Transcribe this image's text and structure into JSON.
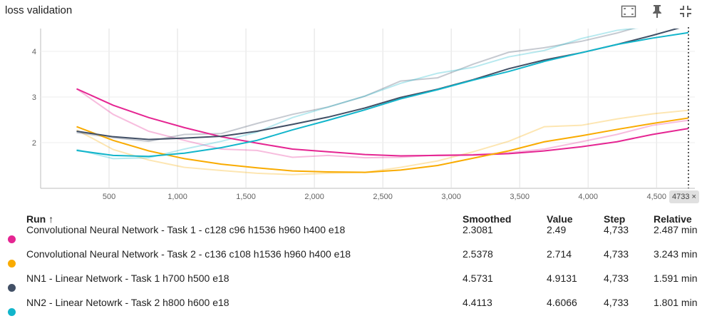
{
  "title": "loss validation",
  "icons": [
    "fit-domain-icon",
    "pin-icon",
    "collapse-icon"
  ],
  "step_badge": "4733 ×",
  "table": {
    "headers": {
      "run": "Run ↑",
      "smoothed": "Smoothed",
      "value": "Value",
      "step": "Step",
      "relative": "Relative"
    },
    "rows": [
      {
        "name": "Convolutional Neural Network - Task 1 - c128 c96 h1536 h960 h400 e18",
        "smoothed": "2.3081",
        "value": "2.49",
        "step": "4,733",
        "relative": "2.487 min",
        "color": "#e52592"
      },
      {
        "name": "Convolutional Neural Network - Task 2 - c136 c108 h1536 h960 h400 e18",
        "smoothed": "2.5378",
        "value": "2.714",
        "step": "4,733",
        "relative": "3.243 min",
        "color": "#f9ab00"
      },
      {
        "name": "NN1 - Linear Network - Task 1 h700 h500 e18",
        "smoothed": "4.5731",
        "value": "4.9131",
        "step": "4,733",
        "relative": "1.591 min",
        "color": "#425066"
      },
      {
        "name": "NN2 - Linear Netowrk - Task 2 h800 h600 e18",
        "smoothed": "4.4113",
        "value": "4.6066",
        "step": "4,733",
        "relative": "1.801 min",
        "color": "#12b5cb"
      }
    ]
  },
  "chart_data": {
    "type": "line",
    "title": "loss validation",
    "xlim": [
      0,
      4780
    ],
    "ylim": [
      1.0,
      4.5
    ],
    "x_ticks": [
      500,
      1000,
      1500,
      2000,
      2500,
      3000,
      3500,
      4000,
      4500
    ],
    "x_tick_labels": [
      "500",
      "1,000",
      "1,500",
      "2,000",
      "2,500",
      "3,000",
      "3,500",
      "4,000",
      "4,500"
    ],
    "y_ticks": [
      2,
      3,
      4
    ],
    "y_tick_labels": [
      "2",
      "3",
      "4"
    ],
    "grid": true,
    "cursor_step": 4733,
    "series": [
      {
        "name": "Convolutional Neural Network - Task 1 - c128 c96 h1536 h960 h400 e18",
        "color": "#e52592",
        "x": [
          263,
          530,
          790,
          1050,
          1320,
          1580,
          1840,
          2100,
          2370,
          2630,
          2900,
          3160,
          3420,
          3680,
          3950,
          4210,
          4470,
          4733
        ],
        "raw": [
          3.18,
          2.62,
          2.25,
          2.05,
          1.86,
          1.83,
          1.68,
          1.72,
          1.67,
          1.68,
          1.73,
          1.74,
          1.78,
          1.86,
          2.02,
          2.18,
          2.38,
          2.49
        ],
        "smoothed": [
          3.18,
          2.82,
          2.55,
          2.33,
          2.13,
          1.99,
          1.86,
          1.8,
          1.74,
          1.71,
          1.72,
          1.73,
          1.76,
          1.82,
          1.91,
          2.02,
          2.18,
          2.31
        ]
      },
      {
        "name": "Convolutional Neural Network - Task 2 - c136 c108 h1536 h960 h400 e18",
        "color": "#f9ab00",
        "x": [
          263,
          530,
          790,
          1050,
          1320,
          1580,
          1840,
          2100,
          2370,
          2630,
          2900,
          3160,
          3420,
          3680,
          3950,
          4210,
          4470,
          4733
        ],
        "raw": [
          2.28,
          1.85,
          1.62,
          1.46,
          1.39,
          1.33,
          1.3,
          1.33,
          1.35,
          1.46,
          1.6,
          1.8,
          2.03,
          2.35,
          2.38,
          2.52,
          2.63,
          2.71
        ],
        "smoothed": [
          2.35,
          2.05,
          1.82,
          1.65,
          1.53,
          1.45,
          1.38,
          1.36,
          1.35,
          1.4,
          1.5,
          1.66,
          1.82,
          2.02,
          2.15,
          2.29,
          2.42,
          2.54
        ]
      },
      {
        "name": "NN1 - Linear Network - Task 1 h700 h500 e18",
        "color": "#425066",
        "x": [
          263,
          530,
          790,
          1050,
          1320,
          1580,
          1840,
          2100,
          2370,
          2630,
          2900,
          3160,
          3420,
          3680,
          3950,
          4210,
          4470,
          4733
        ],
        "raw": [
          2.22,
          2.11,
          2.03,
          2.18,
          2.2,
          2.42,
          2.62,
          2.78,
          3.02,
          3.35,
          3.42,
          3.72,
          3.98,
          4.08,
          4.22,
          4.4,
          4.62,
          4.91
        ],
        "smoothed": [
          2.25,
          2.13,
          2.07,
          2.1,
          2.14,
          2.25,
          2.4,
          2.56,
          2.76,
          2.99,
          3.17,
          3.38,
          3.62,
          3.81,
          3.97,
          4.15,
          4.35,
          4.57
        ]
      },
      {
        "name": "NN2 - Linear Netowrk - Task 2 h800 h600 e18",
        "color": "#12b5cb",
        "x": [
          263,
          530,
          790,
          1050,
          1320,
          1580,
          1840,
          2100,
          2370,
          2630,
          2900,
          3160,
          3420,
          3680,
          3950,
          4210,
          4470,
          4733
        ],
        "raw": [
          1.85,
          1.65,
          1.67,
          1.86,
          2.03,
          2.23,
          2.55,
          2.78,
          3.02,
          3.3,
          3.52,
          3.65,
          3.88,
          4.02,
          4.28,
          4.46,
          4.55,
          4.61
        ],
        "smoothed": [
          1.83,
          1.72,
          1.7,
          1.77,
          1.89,
          2.05,
          2.28,
          2.49,
          2.72,
          2.96,
          3.16,
          3.37,
          3.56,
          3.78,
          3.97,
          4.15,
          4.29,
          4.41
        ]
      }
    ]
  }
}
